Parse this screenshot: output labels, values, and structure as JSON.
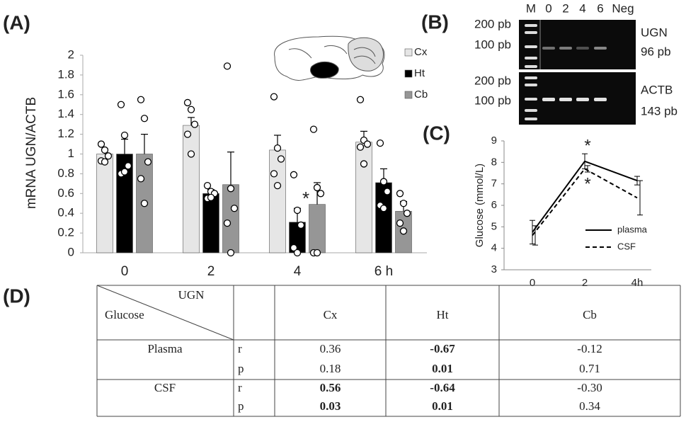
{
  "panel_labels": [
    "(A)",
    "(B)",
    "(C)",
    "(D)"
  ],
  "chart_data": [
    {
      "type": "bar",
      "ylabel": "mRNA UGN/ACTB",
      "categories": [
        "0",
        "2",
        "4",
        "6 h"
      ],
      "ylim": [
        0,
        2
      ],
      "yticks": [
        0,
        0.2,
        0.4,
        0.6,
        0.8,
        1,
        1.2,
        1.4,
        1.6,
        1.8,
        2
      ],
      "series": [
        {
          "name": "Cx",
          "color": "#e6e6e6",
          "values": [
            1.0,
            1.29,
            1.04,
            1.12
          ],
          "errors": [
            0.05,
            0.08,
            0.15,
            0.11
          ],
          "points": [
            [
              1.1,
              1.04,
              0.98,
              0.93,
              0.92
            ],
            [
              1.52,
              1.45,
              1.3,
              1.2,
              1.0
            ],
            [
              1.58,
              1.06,
              0.95,
              0.8,
              0.68
            ],
            [
              1.55,
              1.14,
              1.1,
              1.07,
              0.9
            ]
          ]
        },
        {
          "name": "Ht",
          "color": "#000000",
          "values": [
            1.0,
            0.6,
            0.31,
            0.71
          ],
          "errors": [
            0.15,
            0.04,
            0.14,
            0.14
          ],
          "points": [
            [
              1.5,
              1.19,
              0.88,
              0.8,
              0.82
            ],
            [
              0.68,
              0.62,
              0.6,
              0.55,
              0.56
            ],
            [
              0.79,
              0.43,
              0.28,
              0.05,
              0.0
            ],
            [
              1.11,
              0.72,
              0.62,
              0.48,
              0.45
            ]
          ]
        },
        {
          "name": "Cb",
          "color": "#969696",
          "values": [
            1.0,
            0.69,
            0.49,
            0.42
          ],
          "errors": [
            0.2,
            0.33,
            0.22,
            0.1
          ],
          "points": [
            [
              1.55,
              1.36,
              0.92,
              0.75,
              0.5
            ],
            [
              1.89,
              0.65,
              0.45,
              0.3,
              0.0
            ],
            [
              1.25,
              0.66,
              0.6,
              0.0,
              0.0
            ],
            [
              0.6,
              0.5,
              0.4,
              0.3,
              0.22
            ]
          ]
        }
      ],
      "annotations": [
        {
          "text": "*",
          "x": "4",
          "series": "Ht",
          "position": "above"
        }
      ]
    },
    {
      "type": "line",
      "ylabel": "Glucose (mmol/L)",
      "categories": [
        "0",
        "2",
        "4h"
      ],
      "ylim": [
        3,
        9
      ],
      "yticks": [
        3,
        4,
        5,
        6,
        7,
        8,
        9
      ],
      "series": [
        {
          "name": "plasma",
          "color": "#000000",
          "dash": "solid",
          "values": [
            4.75,
            8.05,
            7.15
          ],
          "errors": [
            0.55,
            0.35,
            0.2
          ]
        },
        {
          "name": "CSF",
          "color": "#000000",
          "dash": "dashed",
          "values": [
            4.6,
            7.7,
            6.35
          ],
          "errors": [
            0.45,
            0.15,
            0.8
          ]
        }
      ],
      "annotations": [
        {
          "text": "*",
          "x": "2",
          "series": "plasma",
          "position": "above"
        },
        {
          "text": "*",
          "x": "2",
          "series": "CSF",
          "position": "below"
        }
      ]
    }
  ],
  "gel": {
    "lanes": [
      "M",
      "0",
      "2",
      "4",
      "6",
      "Neg"
    ],
    "blots": [
      {
        "markers": [
          "200 pb",
          "100 pb"
        ],
        "gene": "UGN",
        "size": "96 pb"
      },
      {
        "markers": [
          "200 pb",
          "100 pb"
        ],
        "gene": "ACTB",
        "size": "143 pb"
      }
    ]
  },
  "table": {
    "corner": {
      "top": "UGN",
      "left": "Glucose"
    },
    "columns": [
      "Cx",
      "Ht",
      "Cb"
    ],
    "groups": [
      {
        "label": "Plasma",
        "rows": [
          {
            "stat": "r",
            "cells": [
              {
                "text": "0.36",
                "bold": false
              },
              {
                "text": "-0.67",
                "bold": true
              },
              {
                "text": "-0.12",
                "bold": false
              }
            ]
          },
          {
            "stat": "p",
            "cells": [
              {
                "text": "0.18",
                "bold": false
              },
              {
                "text": "0.01",
                "bold": true
              },
              {
                "text": "0.71",
                "bold": false
              }
            ]
          }
        ]
      },
      {
        "label": "CSF",
        "rows": [
          {
            "stat": "r",
            "cells": [
              {
                "text": "0.56",
                "bold": true
              },
              {
                "text": "-0.64",
                "bold": true
              },
              {
                "text": "-0.30",
                "bold": false
              }
            ]
          },
          {
            "stat": "p",
            "cells": [
              {
                "text": "0.03",
                "bold": true
              },
              {
                "text": "0.01",
                "bold": true
              },
              {
                "text": "0.34",
                "bold": false
              }
            ]
          }
        ]
      }
    ]
  }
}
